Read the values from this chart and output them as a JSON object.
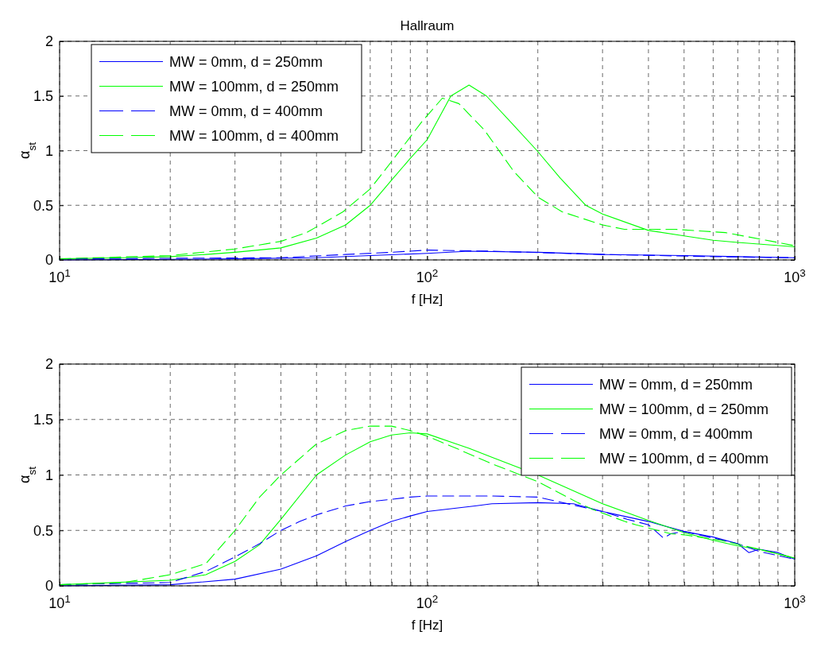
{
  "chart_data": [
    {
      "type": "line",
      "title": "Hallraum",
      "xlabel": "f [Hz]",
      "ylabel": "α$_{st}$",
      "log": "x",
      "grid": true,
      "legend": "top left",
      "xlim": [
        10,
        1000
      ],
      "ylim": [
        0,
        2
      ],
      "xticks": [
        {
          "value": 10,
          "label": "10$^{1}$"
        },
        {
          "value": 20,
          "label": null
        },
        {
          "value": 30,
          "label": null
        },
        {
          "value": 40,
          "label": null
        },
        {
          "value": 50,
          "label": null
        },
        {
          "value": 60,
          "label": null
        },
        {
          "value": 70,
          "label": null
        },
        {
          "value": 80,
          "label": null
        },
        {
          "value": 90,
          "label": null
        },
        {
          "value": 100,
          "label": "10$^{2}$"
        },
        {
          "value": 200,
          "label": null
        },
        {
          "value": 300,
          "label": null
        },
        {
          "value": 400,
          "label": null
        },
        {
          "value": 500,
          "label": null
        },
        {
          "value": 600,
          "label": null
        },
        {
          "value": 700,
          "label": null
        },
        {
          "value": 800,
          "label": null
        },
        {
          "value": 900,
          "label": null
        },
        {
          "value": 1000,
          "label": "10$^{3}$"
        }
      ],
      "yticks": [
        0,
        0.5,
        1,
        1.5,
        2
      ],
      "series": [
        {
          "name": "MW = 0mm, d = 250mm",
          "color": "#0000ff",
          "line_style": "solid",
          "x": [
            10,
            20,
            30,
            50,
            70,
            100,
            130,
            200,
            300,
            500,
            700,
            1000
          ],
          "values": [
            0,
            0.005,
            0.01,
            0.02,
            0.04,
            0.06,
            0.08,
            0.07,
            0.05,
            0.04,
            0.03,
            0.02
          ]
        },
        {
          "name": "MW = 100mm, d = 250mm",
          "color": "#00ff00",
          "line_style": "solid",
          "x": [
            10,
            15,
            20,
            25,
            30,
            40,
            50,
            60,
            70,
            80,
            90,
            100,
            116,
            130,
            145,
            170,
            199,
            230,
            270,
            300,
            400,
            500,
            600,
            700,
            1000
          ],
          "values": [
            0.01,
            0.02,
            0.03,
            0.05,
            0.07,
            0.11,
            0.2,
            0.32,
            0.5,
            0.73,
            0.93,
            1.1,
            1.5,
            1.6,
            1.5,
            1.25,
            1,
            0.75,
            0.5,
            0.42,
            0.27,
            0.22,
            0.18,
            0.16,
            0.12
          ]
        },
        {
          "name": "MW = 0mm, d = 400mm",
          "color": "#0000ff",
          "line_style": "dashed",
          "x": [
            10,
            40,
            60,
            80,
            100,
            150,
            300,
            600,
            1000
          ],
          "values": [
            0.01,
            0.02,
            0.05,
            0.07,
            0.09,
            0.08,
            0.05,
            0.03,
            0.02
          ]
        },
        {
          "name": "MW = 100mm, d = 400mm",
          "color": "#00ff00",
          "line_style": "dashed",
          "x": [
            10,
            20,
            30,
            40,
            47,
            59,
            70,
            80,
            97,
            110,
            122,
            143,
            172,
            201,
            233,
            300,
            344,
            473,
            648,
            868,
            1000
          ],
          "values": [
            0.01,
            0.04,
            0.1,
            0.17,
            0.25,
            0.44,
            0.65,
            0.9,
            1.27,
            1.48,
            1.43,
            1.19,
            0.81,
            0.57,
            0.44,
            0.32,
            0.28,
            0.28,
            0.25,
            0.17,
            0.13
          ]
        }
      ]
    },
    {
      "type": "line",
      "xlabel": "f [Hz]",
      "ylabel": "α$_{st}$",
      "log": "x",
      "grid": true,
      "legend": "top right",
      "xlim": [
        10,
        1000
      ],
      "ylim": [
        0,
        2
      ],
      "xticks": [
        {
          "value": 10,
          "label": "10$^{1}$"
        },
        {
          "value": 20,
          "label": null
        },
        {
          "value": 30,
          "label": null
        },
        {
          "value": 40,
          "label": null
        },
        {
          "value": 50,
          "label": null
        },
        {
          "value": 60,
          "label": null
        },
        {
          "value": 70,
          "label": null
        },
        {
          "value": 80,
          "label": null
        },
        {
          "value": 90,
          "label": null
        },
        {
          "value": 100,
          "label": "10$^{2}$"
        },
        {
          "value": 200,
          "label": null
        },
        {
          "value": 300,
          "label": null
        },
        {
          "value": 400,
          "label": null
        },
        {
          "value": 500,
          "label": null
        },
        {
          "value": 600,
          "label": null
        },
        {
          "value": 700,
          "label": null
        },
        {
          "value": 800,
          "label": null
        },
        {
          "value": 900,
          "label": null
        },
        {
          "value": 1000,
          "label": "10$^{3}$"
        }
      ],
      "yticks": [
        0,
        0.5,
        1,
        1.5,
        2
      ],
      "series": [
        {
          "name": "MW = 0mm, d = 250mm",
          "color": "#0000ff",
          "line_style": "solid",
          "x": [
            10,
            20,
            30,
            40,
            50,
            60,
            70,
            80,
            90,
            100,
            135,
            150,
            200,
            250,
            300,
            400,
            500,
            600,
            700,
            750,
            800,
            900,
            1000
          ],
          "values": [
            0,
            0.01,
            0.06,
            0.15,
            0.27,
            0.4,
            0.5,
            0.58,
            0.63,
            0.67,
            0.72,
            0.74,
            0.75,
            0.74,
            0.67,
            0.58,
            0.49,
            0.44,
            0.38,
            0.3,
            0.33,
            0.3,
            0.24
          ]
        },
        {
          "name": "MW = 100mm, d = 250mm",
          "color": "#00ff00",
          "line_style": "solid",
          "x": [
            10,
            20,
            25,
            30,
            35,
            40,
            50,
            60,
            70,
            80,
            90,
            100,
            120,
            130,
            150,
            200,
            300,
            400,
            500,
            600,
            700,
            800,
            1000
          ],
          "values": [
            0.01,
            0.05,
            0.1,
            0.22,
            0.37,
            0.6,
            1,
            1.18,
            1.3,
            1.36,
            1.38,
            1.37,
            1.28,
            1.24,
            1.16,
            1,
            0.74,
            0.59,
            0.48,
            0.41,
            0.36,
            0.33,
            0.25
          ]
        },
        {
          "name": "MW = 0mm, d = 400mm",
          "color": "#0000ff",
          "line_style": "dashed",
          "x": [
            10,
            20,
            25,
            30,
            35,
            40,
            45,
            50,
            60,
            70,
            80,
            90,
            100,
            150,
            200,
            300,
            350,
            400,
            440,
            460,
            500,
            700,
            800,
            1000
          ],
          "values": [
            0.01,
            0.03,
            0.13,
            0.26,
            0.38,
            0.5,
            0.58,
            0.64,
            0.72,
            0.76,
            0.78,
            0.8,
            0.81,
            0.81,
            0.8,
            0.67,
            0.6,
            0.55,
            0.43,
            0.47,
            0.49,
            0.38,
            0.31,
            0.24
          ]
        },
        {
          "name": "MW = 100mm, d = 400mm",
          "color": "#00ff00",
          "line_style": "dashed",
          "x": [
            10,
            15,
            20,
            25,
            30,
            35,
            40,
            50,
            60,
            70,
            80,
            90,
            100,
            120,
            150,
            200,
            257,
            282,
            345,
            370,
            460,
            500,
            630,
            800,
            1000
          ],
          "values": [
            0.01,
            0.03,
            0.1,
            0.2,
            0.5,
            0.8,
            1,
            1.28,
            1.4,
            1.44,
            1.44,
            1.4,
            1.35,
            1.24,
            1.1,
            0.94,
            0.75,
            0.69,
            0.58,
            0.55,
            0.47,
            0.46,
            0.41,
            0.33,
            0.25
          ]
        }
      ]
    }
  ]
}
